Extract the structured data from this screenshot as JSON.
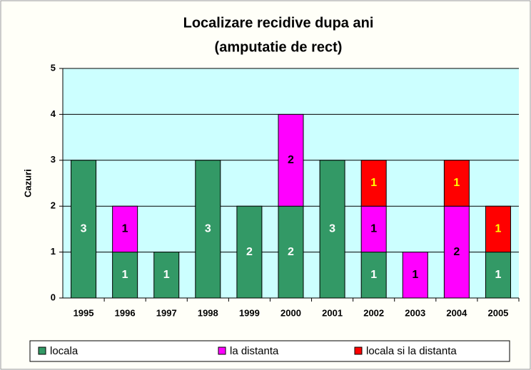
{
  "chart_data": {
    "type": "stacked_bar",
    "title": [
      "Localizare recidive dupa ani",
      "(amputatie de rect)"
    ],
    "y_label": "Cazuri",
    "categories": [
      "1995",
      "1996",
      "1997",
      "1998",
      "1999",
      "2000",
      "2001",
      "2002",
      "2003",
      "2004",
      "2005"
    ],
    "series": [
      {
        "name": "locala",
        "color": "#339966",
        "label_color": "#ffffff",
        "values": [
          3,
          1,
          1,
          3,
          2,
          2,
          3,
          1,
          0,
          0,
          1
        ]
      },
      {
        "name": "la distanta",
        "color": "#ff00ff",
        "label_color": "#000000",
        "values": [
          0,
          1,
          0,
          0,
          0,
          2,
          0,
          1,
          1,
          2,
          0
        ]
      },
      {
        "name": "locala si la distanta",
        "color": "#ff0000",
        "label_color": "#ffff00",
        "values": [
          0,
          0,
          0,
          0,
          0,
          0,
          0,
          1,
          0,
          1,
          1
        ]
      }
    ],
    "ylim": [
      0,
      5
    ],
    "yticks": [
      0,
      1,
      2,
      3,
      4,
      5
    ],
    "grid": true,
    "legend": "bottom"
  }
}
